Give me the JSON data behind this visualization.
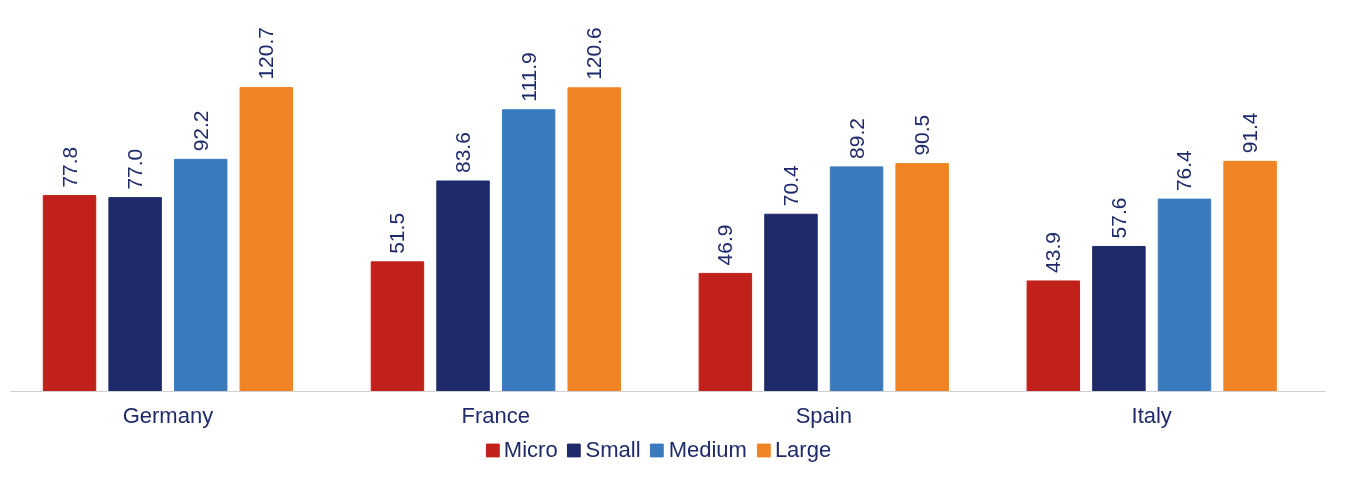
{
  "chart_data": {
    "type": "bar",
    "categories": [
      "Germany",
      "France",
      "Spain",
      "Italy"
    ],
    "series": [
      {
        "name": "Micro",
        "color": "#c0211a",
        "values": [
          77.8,
          51.5,
          46.9,
          43.9
        ],
        "value_labels": [
          "77.8",
          "51.5",
          "46.9",
          "43.9"
        ]
      },
      {
        "name": "Small",
        "color": "#1f2a6b",
        "values": [
          77.0,
          83.6,
          70.4,
          57.6
        ],
        "value_labels": [
          "77.0",
          "83.6",
          "70.4",
          "57.6"
        ]
      },
      {
        "name": "Medium",
        "color": "#3a7bbf",
        "values": [
          92.2,
          111.9,
          89.2,
          76.4
        ],
        "value_labels": [
          "92.2",
          "111.9",
          "89.2",
          "76.4"
        ]
      },
      {
        "name": "Large",
        "color": "#f08323",
        "values": [
          120.7,
          120.6,
          90.5,
          91.4
        ],
        "value_labels": [
          "120.7",
          "120.6",
          "90.5",
          "91.4"
        ]
      }
    ],
    "legend": "bottom",
    "tick_labels": "x"
  }
}
